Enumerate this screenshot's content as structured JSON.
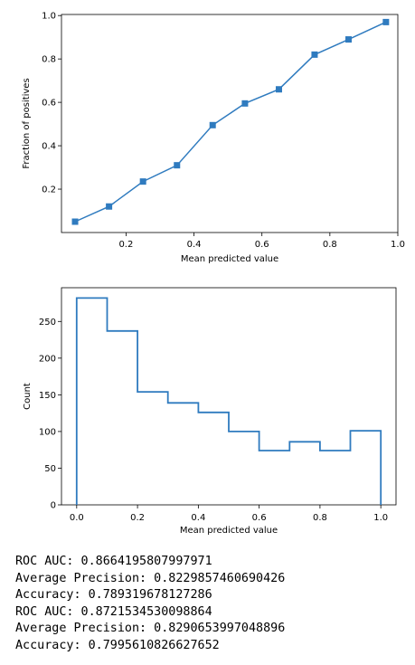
{
  "chart_data": [
    {
      "type": "line",
      "title": "",
      "xlabel": "Mean predicted value",
      "ylabel": "Fraction of positives",
      "x": [
        0.05,
        0.15,
        0.25,
        0.35,
        0.455,
        0.55,
        0.65,
        0.755,
        0.855,
        0.965
      ],
      "series": [
        {
          "values": [
            0.05,
            0.12,
            0.235,
            0.31,
            0.495,
            0.595,
            0.66,
            0.82,
            0.89,
            0.97
          ]
        }
      ],
      "marker": "square",
      "color": "#2f7bbf",
      "xlim": [
        0.01,
        1.0
      ],
      "ylim": [
        0.0,
        1.005
      ],
      "xticks": [
        "0.2",
        "0.4",
        "0.6",
        "0.8",
        "1.0"
      ],
      "yticks": [
        "0.2",
        "0.4",
        "0.6",
        "0.8",
        "1.0"
      ],
      "grid": false
    },
    {
      "type": "bar",
      "style": "step",
      "title": "",
      "xlabel": "Mean predicted value",
      "ylabel": "Count",
      "bin_edges": [
        0.0,
        0.1,
        0.2,
        0.3,
        0.4,
        0.5,
        0.6,
        0.7,
        0.8,
        0.9,
        1.0
      ],
      "values": [
        282,
        237,
        154,
        139,
        126,
        100,
        74,
        86,
        74,
        101
      ],
      "color": "#2f7bbf",
      "xlim": [
        -0.05,
        1.05
      ],
      "ylim": [
        0,
        296
      ],
      "xticks": [
        "0.0",
        "0.2",
        "0.4",
        "0.6",
        "0.8",
        "1.0"
      ],
      "yticks": [
        "0",
        "50",
        "100",
        "150",
        "200",
        "250"
      ],
      "grid": false
    }
  ],
  "output": {
    "lines": [
      "ROC AUC: 0.8664195807997971",
      "Average Precision: 0.8229857460690426",
      "Accuracy: 0.789319678127286",
      "ROC AUC: 0.8721534530098864",
      "Average Precision: 0.8290653997048896",
      "Accuracy: 0.7995610826627652"
    ]
  }
}
